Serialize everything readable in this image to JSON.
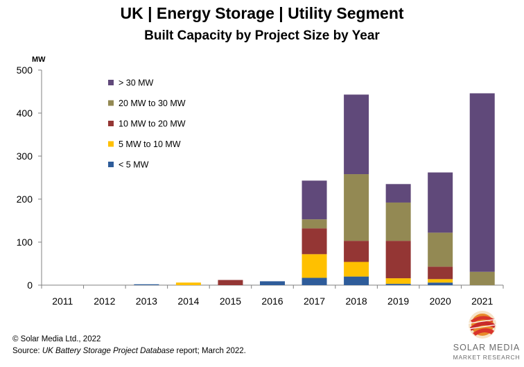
{
  "title": "UK | Energy Storage | Utility Segment",
  "subtitle": "Built Capacity by Project Size by Year",
  "chart_data": {
    "type": "bar",
    "stacked": true,
    "categories": [
      "2011",
      "2012",
      "2013",
      "2014",
      "2015",
      "2016",
      "2017",
      "2018",
      "2019",
      "2020",
      "2021"
    ],
    "ylabel": "MW",
    "ylim": [
      0,
      500
    ],
    "yticks": [
      0,
      100,
      200,
      300,
      400,
      500
    ],
    "grid": false,
    "legend_position": "top-left",
    "series": [
      {
        "name": "< 5 MW",
        "color": "#2E5C9A",
        "values": [
          0,
          0,
          2,
          0,
          0,
          9,
          17,
          20,
          3,
          6,
          0
        ]
      },
      {
        "name": "5 MW to 10 MW",
        "color": "#FFC000",
        "values": [
          0,
          0,
          0,
          6,
          0,
          0,
          55,
          34,
          13,
          8,
          0
        ]
      },
      {
        "name": "10 MW to 20 MW",
        "color": "#943634",
        "values": [
          0,
          0,
          0,
          0,
          12,
          0,
          60,
          49,
          87,
          29,
          0
        ]
      },
      {
        "name": "20 MW to 30 MW",
        "color": "#938953",
        "values": [
          0,
          0,
          0,
          0,
          0,
          0,
          21,
          155,
          89,
          79,
          31
        ]
      },
      {
        "name": "> 30 MW",
        "color": "#60497A",
        "values": [
          0,
          0,
          0,
          0,
          0,
          0,
          90,
          185,
          43,
          140,
          415
        ]
      }
    ]
  },
  "footer": {
    "copyright": "© Solar Media Ltd., 2022",
    "source_prefix": "Source: ",
    "source_title": "UK Battery Storage Project Database",
    "source_suffix": " report; March 2022."
  },
  "logo": {
    "line1": "SOLAR MEDIA",
    "line2": "MARKET RESEARCH"
  }
}
